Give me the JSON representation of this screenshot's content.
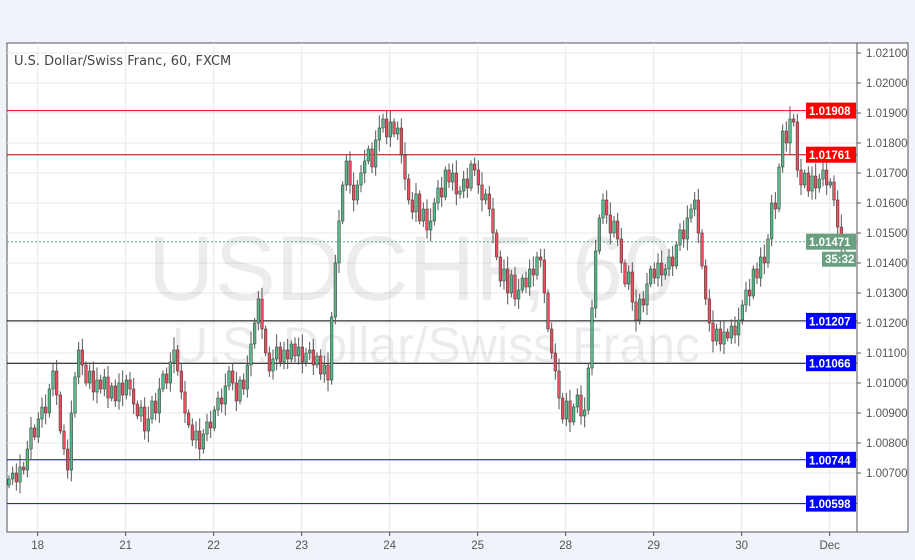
{
  "chart_data": {
    "type": "candlestick",
    "title": "U.S. Dollar/Swiss Franc, 60, FXCM",
    "watermark": {
      "symbol": "USDCHF, 60",
      "name": "U.S. Dollar/Swiss Franc"
    },
    "ylim": [
      1.0054,
      1.0213
    ],
    "y_ticks": [
      "1.02100",
      "1.02000",
      "1.01900",
      "1.01800",
      "1.01700",
      "1.01600",
      "1.01500",
      "1.01400",
      "1.01300",
      "1.01200",
      "1.01100",
      "1.01000",
      "1.00900",
      "1.00800",
      "1.00700"
    ],
    "x_ticks": [
      {
        "label": "18",
        "hour_index": 4
      },
      {
        "label": "21",
        "hour_index": 28
      },
      {
        "label": "22",
        "hour_index": 52
      },
      {
        "label": "23",
        "hour_index": 76
      },
      {
        "label": "24",
        "hour_index": 100
      },
      {
        "label": "25",
        "hour_index": 124
      },
      {
        "label": "28",
        "hour_index": 148
      },
      {
        "label": "29",
        "hour_index": 172
      },
      {
        "label": "30",
        "hour_index": 196
      },
      {
        "label": "Dec",
        "hour_index": 220
      }
    ],
    "grid": true,
    "colors": {
      "up": "#53b987",
      "down": "#eb4d5c",
      "wick": "#555555",
      "border": "#333333"
    },
    "closes": [
      1.0068,
      1.007,
      1.0067,
      1.0072,
      1.0071,
      1.0078,
      1.0085,
      1.0082,
      1.0088,
      1.0092,
      1.009,
      1.0098,
      1.0104,
      1.0096,
      1.0084,
      1.0078,
      1.0071,
      1.009,
      1.0102,
      1.0111,
      1.0106,
      1.01,
      1.0104,
      1.0097,
      1.0101,
      1.0098,
      1.0102,
      1.0095,
      1.0099,
      1.0094,
      1.01,
      1.0096,
      1.0101,
      1.0098,
      1.0093,
      1.0089,
      1.0092,
      1.0084,
      1.0088,
      1.0094,
      1.009,
      1.0098,
      1.0103,
      1.01,
      1.0107,
      1.0111,
      1.0104,
      1.0097,
      1.009,
      1.0086,
      1.0081,
      1.0084,
      1.0078,
      1.0083,
      1.0087,
      1.0085,
      1.0091,
      1.0095,
      1.0093,
      1.0099,
      1.0104,
      1.01,
      1.0094,
      1.0101,
      1.0098,
      1.0106,
      1.0113,
      1.012,
      1.0128,
      1.0118,
      1.011,
      1.0104,
      1.0108,
      1.0112,
      1.0107,
      1.0111,
      1.0108,
      1.0113,
      1.0109,
      1.0112,
      1.0107,
      1.011,
      1.0111,
      1.0106,
      1.0109,
      1.0103,
      1.0106,
      1.0101,
      1.0122,
      1.014,
      1.0154,
      1.0166,
      1.0174,
      1.0166,
      1.0161,
      1.0166,
      1.017,
      1.0174,
      1.0178,
      1.0172,
      1.0181,
      1.0185,
      1.0188,
      1.0182,
      1.0187,
      1.0183,
      1.0185,
      1.0176,
      1.0168,
      1.0161,
      1.0157,
      1.0163,
      1.0154,
      1.0158,
      1.0151,
      1.0154,
      1.016,
      1.0165,
      1.0162,
      1.0171,
      1.0167,
      1.017,
      1.0163,
      1.0164,
      1.0168,
      1.0165,
      1.0173,
      1.0171,
      1.0166,
      1.0161,
      1.0163,
      1.0158,
      1.015,
      1.0142,
      1.0134,
      1.0138,
      1.013,
      1.0136,
      1.0128,
      1.0131,
      1.0135,
      1.0132,
      1.0138,
      1.0136,
      1.0142,
      1.0141,
      1.013,
      1.0118,
      1.011,
      1.0104,
      1.0095,
      1.0088,
      1.0094,
      1.0087,
      1.0092,
      1.0096,
      1.0089,
      1.0091,
      1.0105,
      1.0125,
      1.0144,
      1.0155,
      1.0161,
      1.0156,
      1.015,
      1.0154,
      1.0148,
      1.014,
      1.0133,
      1.0137,
      1.0127,
      1.0121,
      1.0128,
      1.0126,
      1.0133,
      1.0138,
      1.0135,
      1.014,
      1.0136,
      1.0138,
      1.0142,
      1.0139,
      1.0146,
      1.0151,
      1.0148,
      1.0155,
      1.0158,
      1.0161,
      1.015,
      1.0139,
      1.0128,
      1.012,
      1.0114,
      1.0118,
      1.0113,
      1.0117,
      1.0115,
      1.0119,
      1.0116,
      1.0121,
      1.0126,
      1.0131,
      1.0129,
      1.0138,
      1.0135,
      1.0142,
      1.014,
      1.0148,
      1.016,
      1.0158,
      1.0172,
      1.0184,
      1.018,
      1.0188,
      1.0187,
      1.0171,
      1.0166,
      1.017,
      1.0164,
      1.0169,
      1.0165,
      1.0168,
      1.0171,
      1.0166,
      1.0167,
      1.0161,
      1.0152,
      1.0145,
      1.0147
    ],
    "horizontal_lines": [
      {
        "price": 1.01908,
        "label": "1.01908",
        "color": "#ff0000"
      },
      {
        "price": 1.01761,
        "label": "1.01761",
        "color": "#b00000",
        "label_color": "#ff0000"
      },
      {
        "price": 1.01207,
        "label": "1.01207",
        "color": "#000000",
        "label_color": "#0000ff"
      },
      {
        "price": 1.01066,
        "label": "1.01066",
        "color": "#000000",
        "label_color": "#0000ff"
      },
      {
        "price": 1.00744,
        "label": "1.00744",
        "color": "#0000ff"
      },
      {
        "price": 1.00598,
        "label": "1.00598",
        "color": "#0000ff"
      }
    ],
    "current_price": {
      "price": 1.01471,
      "label": "1.01471",
      "countdown": "35:32",
      "color": "#6a9f80"
    }
  }
}
